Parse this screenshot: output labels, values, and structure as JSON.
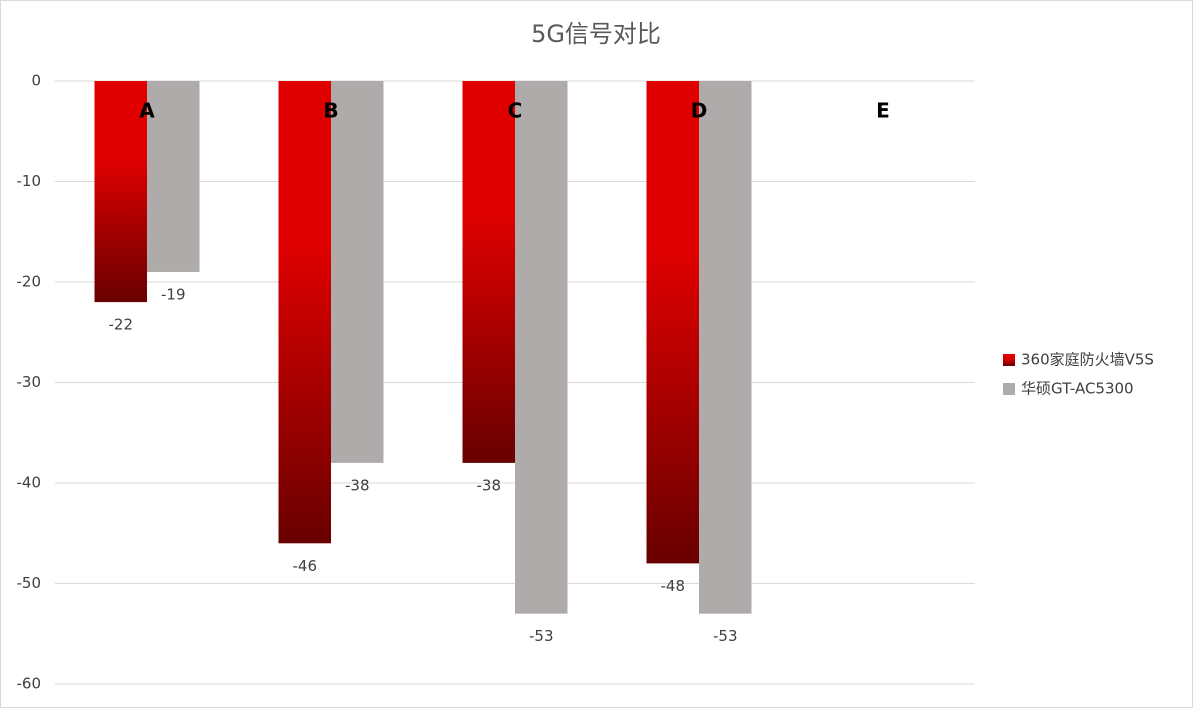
{
  "chart_data": {
    "type": "bar",
    "title": "5G信号对比",
    "categories": [
      "A",
      "B",
      "C",
      "D",
      "E"
    ],
    "series": [
      {
        "name": "360家庭防火墙V5S",
        "color": "#e00000",
        "values": [
          -22,
          -46,
          -38,
          -48,
          null
        ]
      },
      {
        "name": "华硕GT-AC5300",
        "color": "#afabab",
        "values": [
          -19,
          -38,
          -53,
          -53,
          null
        ]
      }
    ],
    "ylim": [
      -60,
      0
    ],
    "yticks": [
      0,
      -10,
      -20,
      -30,
      -40,
      -50,
      -60
    ],
    "grid": true,
    "legend": "right"
  }
}
